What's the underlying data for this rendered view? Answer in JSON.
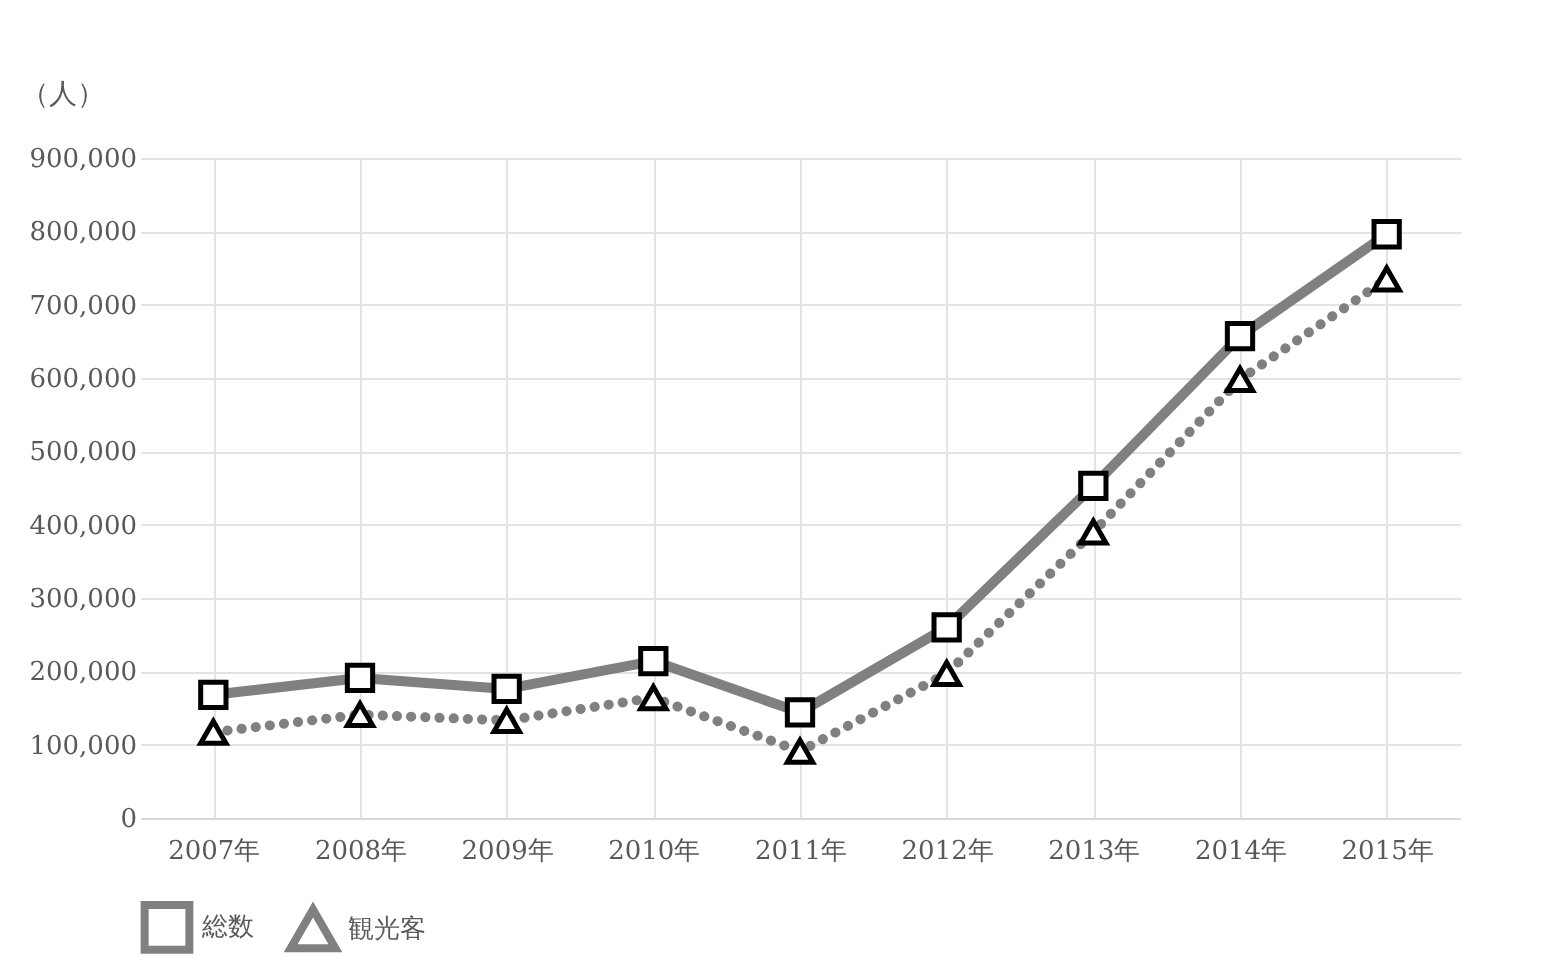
{
  "chart_data": {
    "type": "line",
    "ylabel": "（人）",
    "categories": [
      "2007年",
      "2008年",
      "2009年",
      "2010年",
      "2011年",
      "2012年",
      "2013年",
      "2014年",
      "2015年"
    ],
    "series": [
      {
        "name": "総数",
        "color": "#808080",
        "marker": "square",
        "line_style": "solid",
        "values": [
          168000,
          191000,
          176000,
          214000,
          144000,
          260000,
          453000,
          657000,
          796000
        ]
      },
      {
        "name": "観光客",
        "color": "#808080",
        "marker": "triangle",
        "line_style": "dotted",
        "values": [
          117000,
          141000,
          133000,
          164000,
          91000,
          197000,
          390000,
          598000,
          735000
        ]
      }
    ],
    "ylim": [
      0,
      900000
    ],
    "yticks": [
      0,
      {
        "value": 100000,
        "label": "100,000"
      },
      {
        "value": 200000,
        "label": "200,000"
      },
      {
        "value": 300000,
        "label": "300,000"
      },
      {
        "value": 400000,
        "label": "400,000"
      },
      {
        "value": 500000,
        "label": "500,000"
      },
      {
        "value": 600000,
        "label": "600,000"
      },
      {
        "value": 700000,
        "label": "700,000"
      },
      {
        "value": 800000,
        "label": "800,000"
      },
      {
        "value": 900000,
        "label": "900,000"
      }
    ],
    "grid": true,
    "legend": "bottom"
  }
}
